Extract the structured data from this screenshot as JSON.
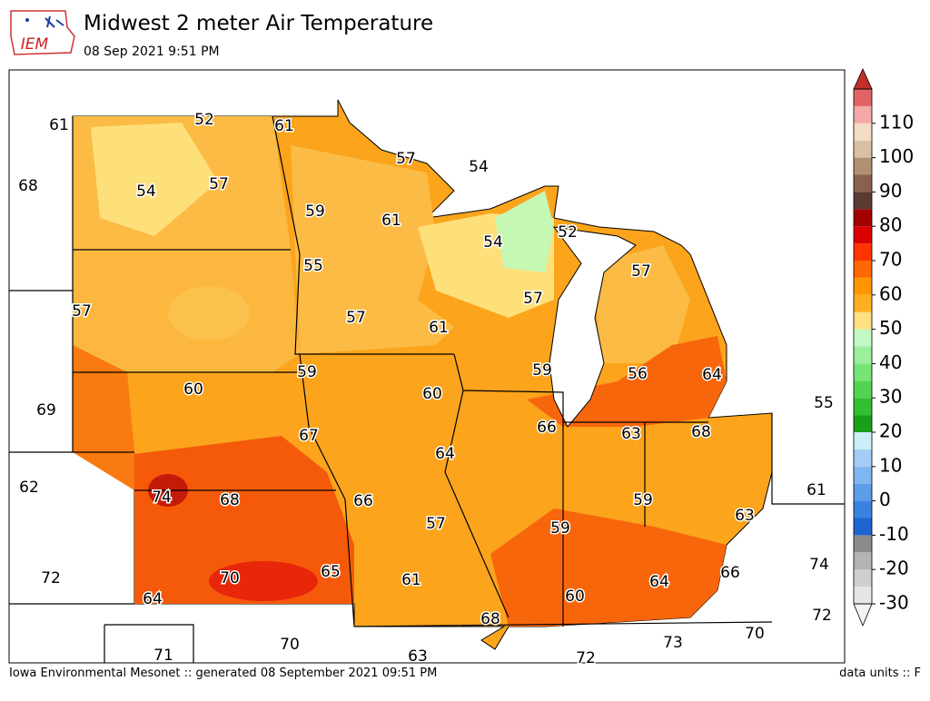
{
  "header": {
    "logo": "IEM",
    "title": "Midwest 2 meter Air Temperature",
    "subtitle": "08 Sep 2021 9:51 PM"
  },
  "map": {
    "labels": [
      61,
      52,
      61,
      68,
      54,
      57,
      57,
      54,
      59,
      61,
      54,
      52,
      55,
      57,
      57,
      57,
      61,
      57,
      60,
      59,
      69,
      59,
      56,
      64,
      60,
      55,
      66,
      63,
      68,
      67,
      64,
      62,
      74,
      68,
      66,
      61,
      59,
      57,
      59,
      63,
      74,
      72,
      70,
      65,
      61,
      64,
      66,
      60,
      64,
      68,
      72,
      70,
      70,
      73,
      71,
      63,
      72
    ]
  },
  "colorbar": {
    "ticks": [
      -30,
      -20,
      -10,
      0,
      10,
      20,
      30,
      40,
      50,
      60,
      70,
      80,
      90,
      100,
      110
    ],
    "colors": [
      "#e6e6e6",
      "#cfcfcf",
      "#b4b4b4",
      "#8c8c8c",
      "#1e64d2",
      "#3a82e0",
      "#5c9ce8",
      "#80b6f0",
      "#a4ccf4",
      "#cceef6",
      "#18a018",
      "#32c032",
      "#52d452",
      "#76e476",
      "#9cf09c",
      "#c4f8c4",
      "#ffe080",
      "#ffb020",
      "#ff9600",
      "#ff6800",
      "#ff3400",
      "#dc0000",
      "#a40000",
      "#5a3a32",
      "#8a6050",
      "#b09070",
      "#d8c0a4",
      "#f4dcc4",
      "#f4a8a8",
      "#e06464"
    ],
    "under_color": "#f2f2f2",
    "over_color": "#c03028"
  },
  "footer": {
    "left": "Iowa Environmental Mesonet :: generated 08 September 2021 09:51 PM",
    "right": "data units :: F"
  }
}
